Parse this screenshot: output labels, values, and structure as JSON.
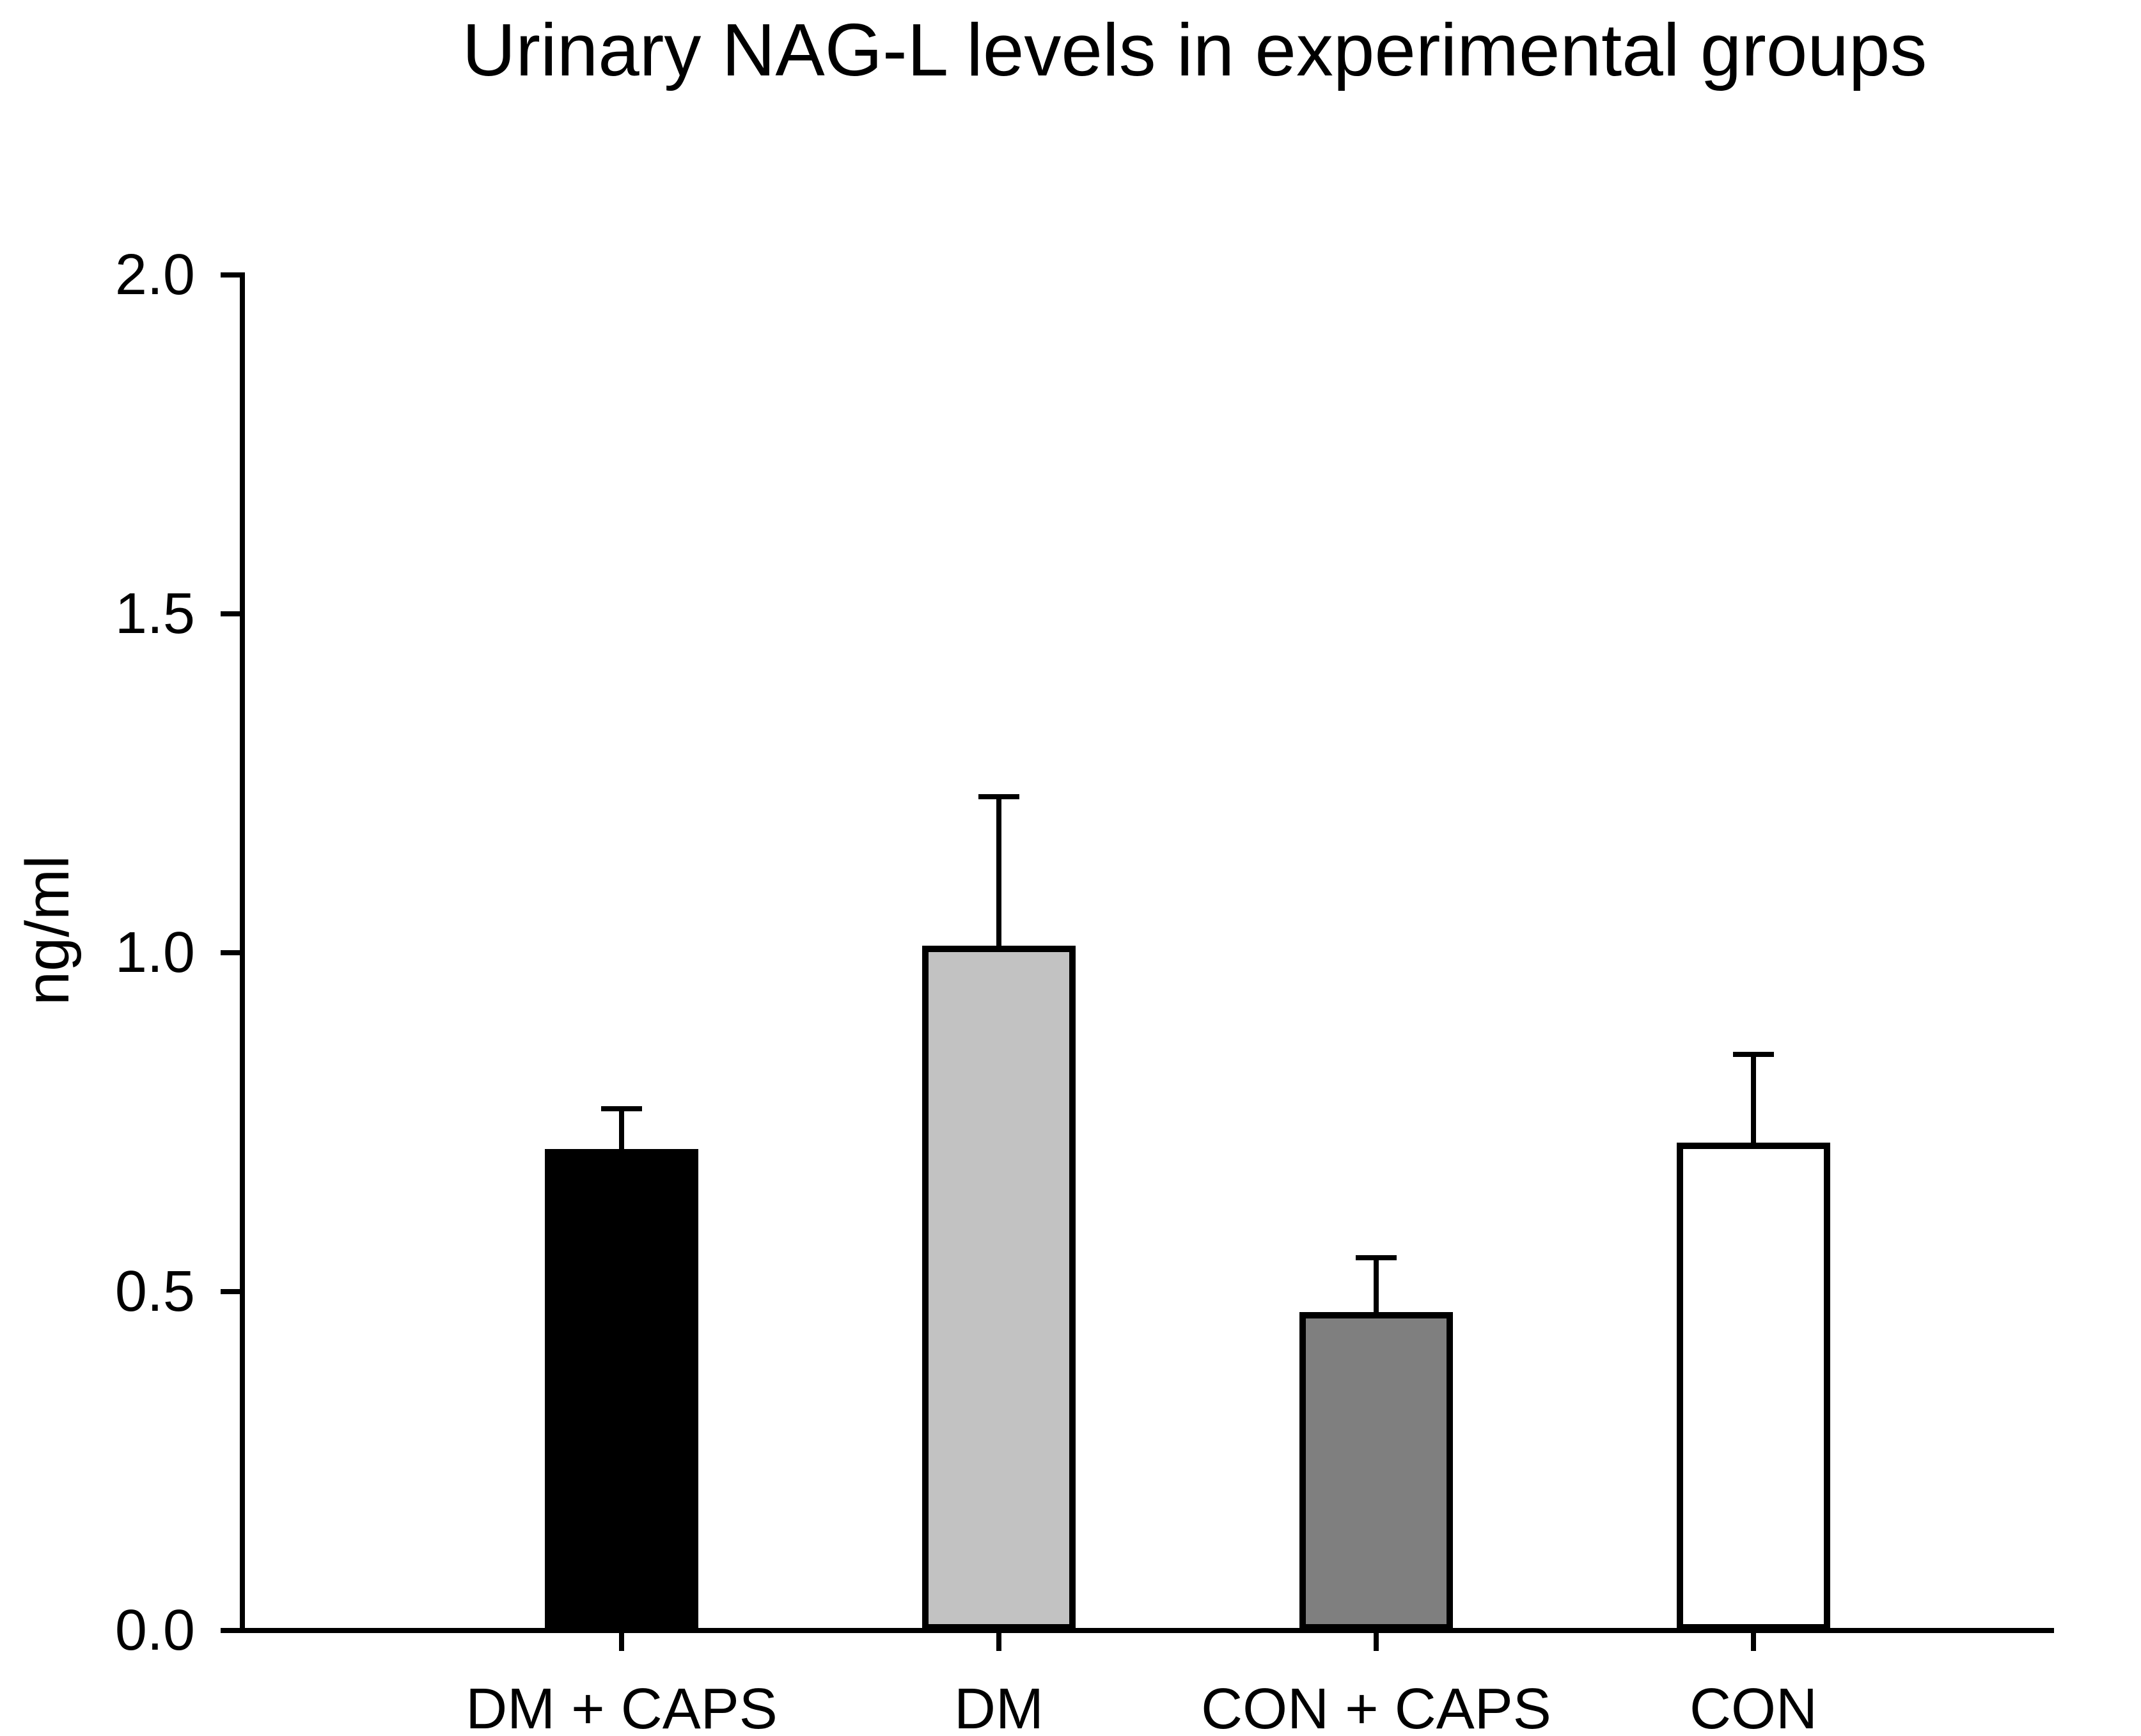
{
  "figure": {
    "title": "Urinary NAG-L levels in experimental groups"
  },
  "chart_data": {
    "type": "bar",
    "title": "Urinary NAG-L levels in experimental groups",
    "xlabel": "",
    "ylabel": "ng/ml",
    "ylim": [
      0.0,
      2.0
    ],
    "yticks": [
      {
        "value": 0.0,
        "label": "0.0"
      },
      {
        "value": 0.5,
        "label": "0.5"
      },
      {
        "value": 1.0,
        "label": "1.0"
      },
      {
        "value": 1.5,
        "label": "1.5"
      },
      {
        "value": 2.0,
        "label": "2.0"
      }
    ],
    "grid": false,
    "legend": "none",
    "error_bars": "plus SEM with caps",
    "categories": [
      "DM + CAPS",
      "DM",
      "CON + CAPS",
      "CON"
    ],
    "series": [
      {
        "name": "Urinary NAG-L",
        "values": [
          0.71,
          1.01,
          0.47,
          0.72
        ],
        "error_plus": [
          0.06,
          0.22,
          0.08,
          0.13
        ]
      }
    ],
    "bar_fill_colors": [
      "#000000",
      "#c2c2c2",
      "#7f7f7f",
      "#ffffff"
    ],
    "bar_border_color": "#000000",
    "axis_color": "#000000",
    "background_color": "#ffffff"
  }
}
